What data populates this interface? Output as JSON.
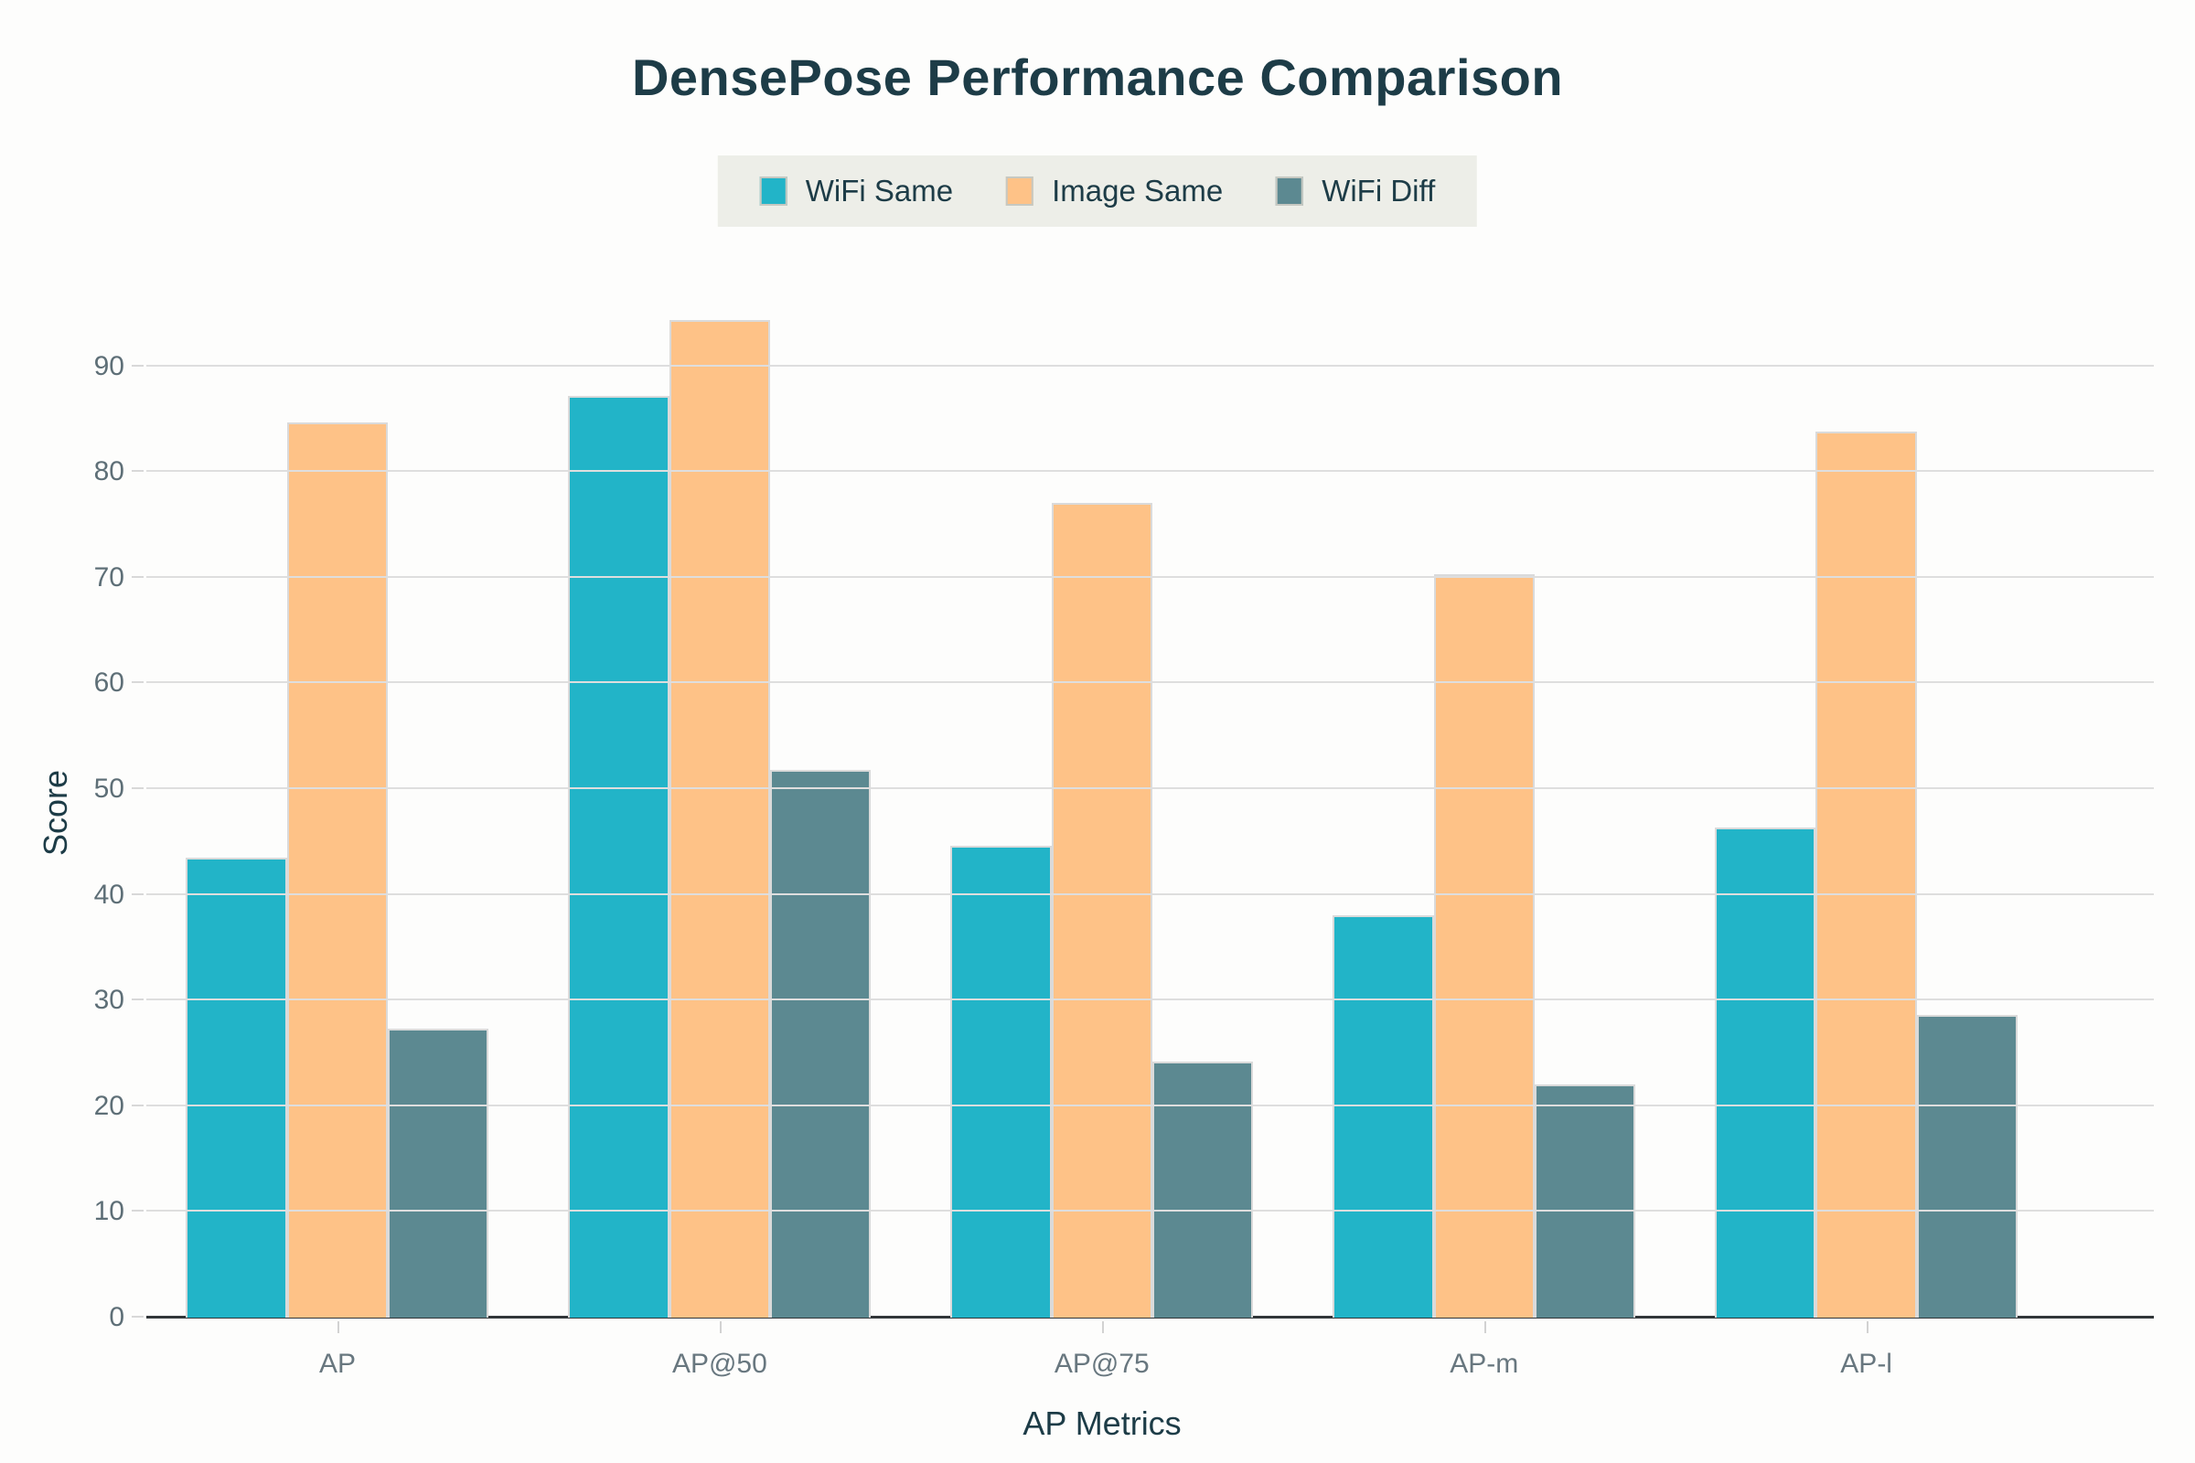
{
  "title": "DensePose Performance Comparison",
  "x_axis_title": "AP Metrics",
  "y_axis_title": "Score",
  "colors": {
    "series_wifi_same": "#22b4c8",
    "series_image_same": "#fec287",
    "series_wifi_diff": "#5c8991",
    "title_text": "#1d3c47",
    "tick_text": "#5e6f77",
    "gridline": "#dedede",
    "axis_line": "#313639",
    "legend_background": "#edeee8",
    "bar_border": "#dadada",
    "page_background": "#fdfdfc"
  },
  "chart_data": {
    "type": "bar",
    "title": "DensePose Performance Comparison",
    "xlabel": "AP Metrics",
    "ylabel": "Score",
    "categories": [
      "AP",
      "AP@50",
      "AP@75",
      "AP-m",
      "AP-l"
    ],
    "series": [
      {
        "name": "WiFi Same",
        "color": "#22b4c8",
        "values": [
          43.5,
          87.2,
          44.6,
          38.1,
          46.4
        ]
      },
      {
        "name": "Image Same",
        "color": "#fec287",
        "values": [
          84.7,
          94.4,
          77.1,
          70.3,
          83.8
        ]
      },
      {
        "name": "WiFi Diff",
        "color": "#5c8991",
        "values": [
          27.3,
          51.8,
          24.2,
          22.1,
          28.6
        ]
      }
    ],
    "ylim": [
      0,
      95.5
    ],
    "yticks": [
      0,
      10,
      20,
      30,
      40,
      50,
      60,
      70,
      80,
      90
    ],
    "grid": true,
    "legend_position": "top-center"
  }
}
